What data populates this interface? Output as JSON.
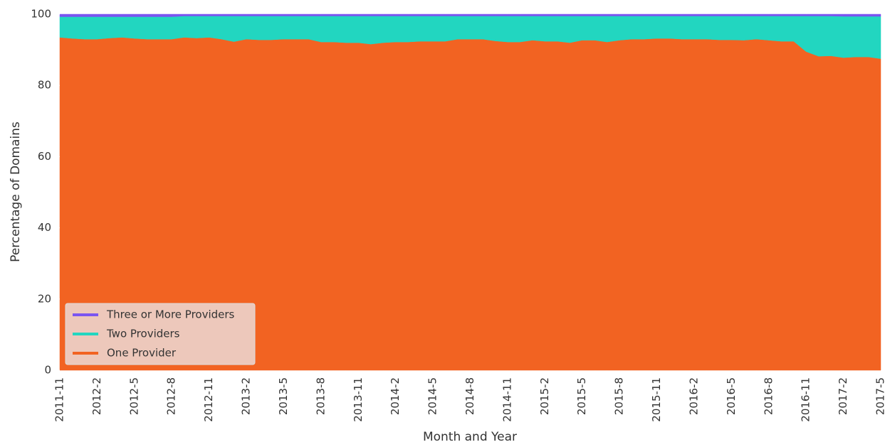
{
  "chart_data": {
    "type": "stacked_area",
    "xlabel": "Month and Year",
    "ylabel": "Percentage of Domains",
    "categories": [
      "2011-11",
      null,
      null,
      "2012-2",
      null,
      null,
      "2012-5",
      null,
      null,
      "2012-8",
      null,
      null,
      "2012-11",
      null,
      null,
      "2013-2",
      null,
      null,
      "2013-5",
      null,
      null,
      "2013-8",
      null,
      null,
      "2013-11",
      null,
      null,
      "2014-2",
      null,
      null,
      "2014-5",
      null,
      null,
      "2014-8",
      null,
      null,
      "2014-11",
      null,
      null,
      "2015-2",
      null,
      null,
      "2015-5",
      null,
      null,
      "2015-8",
      null,
      null,
      "2015-11",
      null,
      null,
      "2016-2",
      null,
      null,
      "2016-5",
      null,
      null,
      "2016-8",
      null,
      null,
      "2016-11",
      null,
      null,
      "2017-2",
      null,
      null,
      "2017-5"
    ],
    "series": [
      {
        "name": "One Provider",
        "color": "#f26322",
        "values": [
          93.5,
          93.2,
          93.0,
          93.0,
          93.3,
          93.5,
          93.2,
          93.0,
          93.0,
          93.0,
          93.5,
          93.3,
          93.5,
          93.0,
          92.3,
          93.0,
          92.8,
          92.8,
          93.0,
          93.0,
          93.0,
          92.2,
          92.2,
          92.0,
          92.0,
          91.6,
          92.0,
          92.2,
          92.2,
          92.4,
          92.4,
          92.4,
          93.0,
          93.0,
          93.0,
          92.5,
          92.2,
          92.2,
          92.7,
          92.4,
          92.4,
          92.0,
          92.7,
          92.7,
          92.2,
          92.7,
          93.0,
          93.0,
          93.2,
          93.2,
          93.0,
          93.0,
          93.0,
          92.8,
          92.8,
          92.7,
          93.0,
          92.7,
          92.4,
          92.4,
          89.5,
          88.2,
          88.3,
          87.8,
          88.0,
          88.0,
          87.5
        ]
      },
      {
        "name": "Two Providers",
        "color": "#22d6c0",
        "values": [
          5.8,
          6.1,
          6.3,
          6.3,
          6.0,
          5.8,
          6.1,
          6.3,
          6.3,
          6.3,
          6.0,
          6.2,
          6.0,
          6.5,
          7.2,
          6.5,
          6.7,
          6.7,
          6.5,
          6.5,
          6.5,
          7.3,
          7.3,
          7.5,
          7.5,
          7.9,
          7.5,
          7.3,
          7.3,
          7.1,
          7.1,
          7.1,
          6.5,
          6.5,
          6.5,
          7.0,
          7.3,
          7.3,
          6.8,
          7.1,
          7.1,
          7.5,
          6.8,
          6.8,
          7.3,
          6.8,
          6.5,
          6.5,
          6.3,
          6.3,
          6.5,
          6.5,
          6.5,
          6.7,
          6.7,
          6.8,
          6.5,
          6.8,
          7.1,
          7.1,
          10.0,
          11.3,
          11.2,
          11.6,
          11.4,
          11.4,
          11.9
        ]
      },
      {
        "name": "Three or More Providers",
        "color": "#7b55f0",
        "values": [
          0.7,
          0.7,
          0.7,
          0.7,
          0.7,
          0.7,
          0.7,
          0.7,
          0.7,
          0.7,
          0.5,
          0.5,
          0.5,
          0.5,
          0.5,
          0.5,
          0.5,
          0.5,
          0.5,
          0.5,
          0.5,
          0.5,
          0.5,
          0.5,
          0.5,
          0.5,
          0.5,
          0.5,
          0.5,
          0.5,
          0.5,
          0.5,
          0.5,
          0.5,
          0.5,
          0.5,
          0.5,
          0.5,
          0.5,
          0.5,
          0.5,
          0.5,
          0.5,
          0.5,
          0.5,
          0.5,
          0.5,
          0.5,
          0.5,
          0.5,
          0.5,
          0.5,
          0.5,
          0.5,
          0.5,
          0.5,
          0.5,
          0.5,
          0.5,
          0.5,
          0.5,
          0.5,
          0.5,
          0.6,
          0.6,
          0.6,
          0.6
        ]
      }
    ],
    "ylim": [
      0,
      100
    ],
    "yticks": [
      0,
      20,
      40,
      60,
      80,
      100
    ],
    "legend": "lower left"
  }
}
